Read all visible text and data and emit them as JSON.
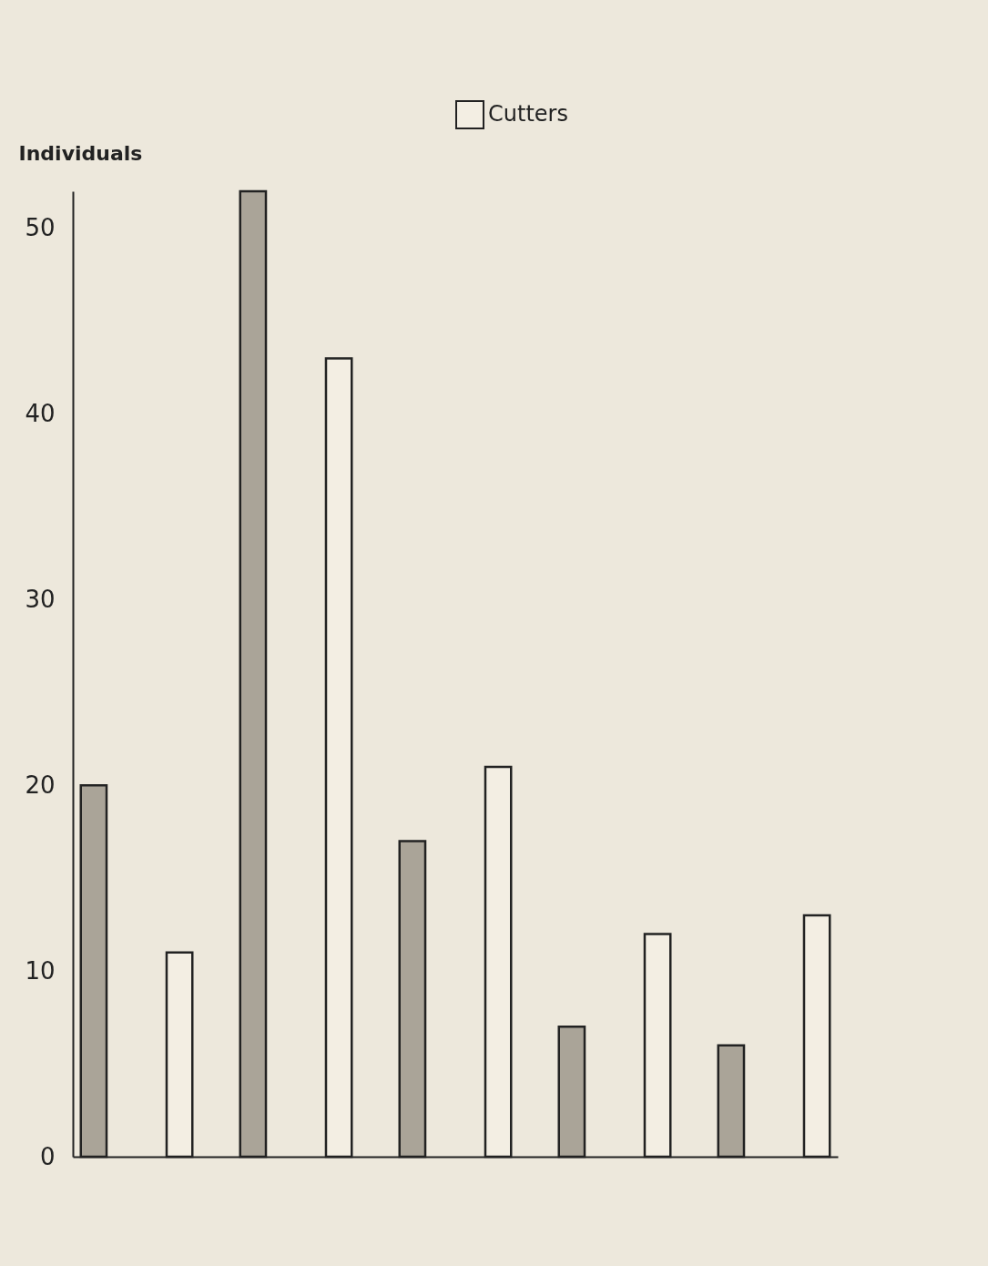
{
  "chart_data": {
    "type": "bar",
    "ylabel": "Individuals",
    "categories": [
      null,
      null,
      null,
      null,
      null
    ],
    "series": [
      {
        "color": "#aaa498",
        "values": [
          20,
          52,
          17,
          7,
          6
        ]
      },
      {
        "name": "Cutters",
        "color": "#f3eee3",
        "values": [
          11,
          43,
          21,
          12,
          13
        ]
      }
    ],
    "ylim": [
      0,
      52
    ],
    "yticks": [
      0,
      10,
      20,
      30,
      40,
      50
    ],
    "grid": false,
    "legend": "top",
    "tick_labels": "y"
  }
}
